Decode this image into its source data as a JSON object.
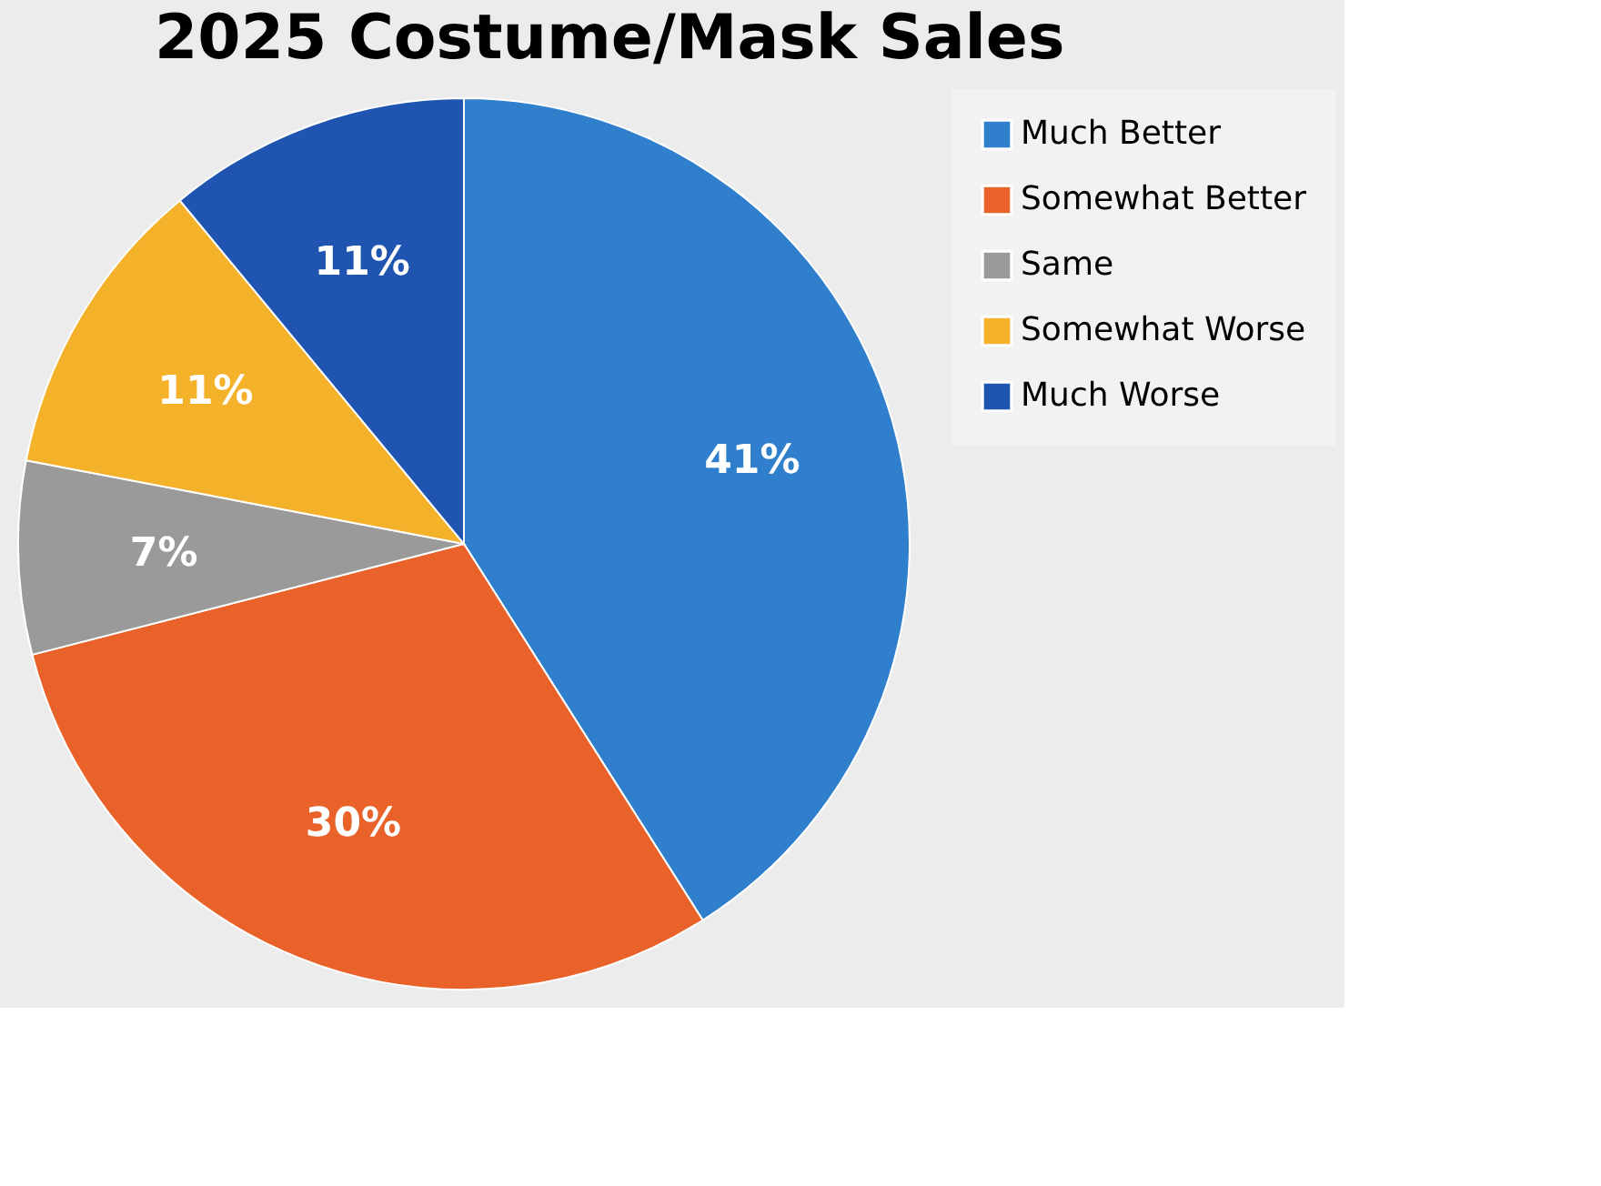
{
  "chart_data": {
    "type": "pie",
    "title": "2025 Costume/Mask Sales",
    "categories": [
      "Much Better",
      "Somewhat Better",
      "Same",
      "Somewhat Worse",
      "Much Worse"
    ],
    "values": [
      41,
      30,
      7,
      11,
      11
    ],
    "colors": [
      "#2f7fcc",
      "#e8622a",
      "#9a9a9a",
      "#f4b12a",
      "#1f55b0"
    ],
    "value_labels": [
      "41%",
      "30%",
      "7%",
      "11%",
      "11%"
    ],
    "legend": "right"
  }
}
